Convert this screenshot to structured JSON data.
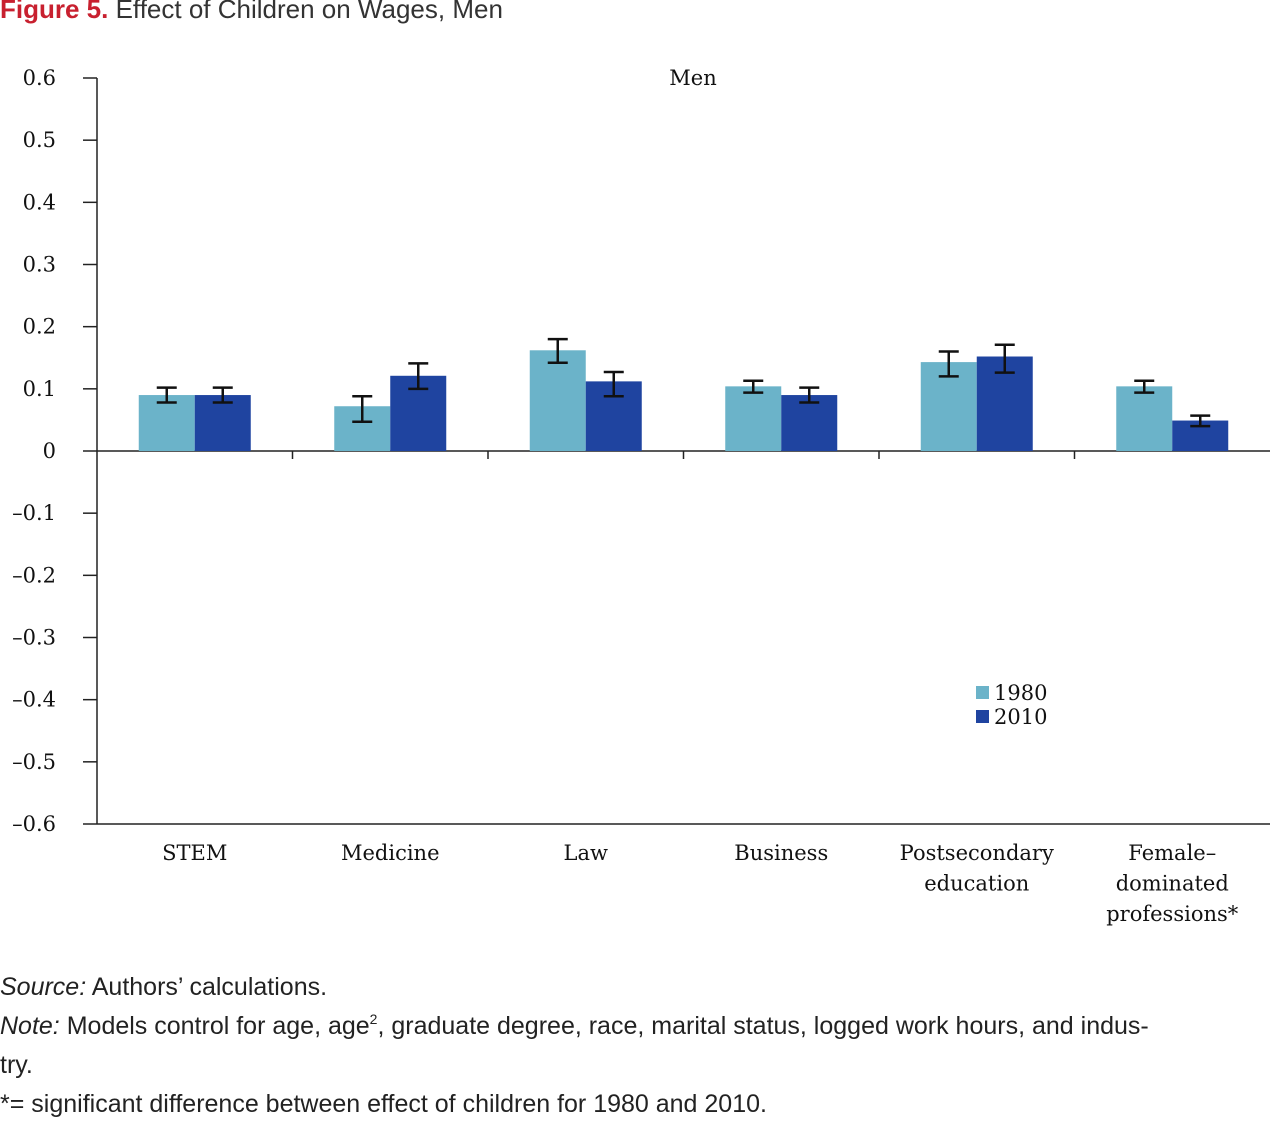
{
  "figure": {
    "label": "Figure 5.",
    "title": "Effect of Children on Wages, Men"
  },
  "chart_data": {
    "type": "bar",
    "title": "Men",
    "xlabel": "",
    "ylabel": "",
    "ylim": [
      -0.6,
      0.6
    ],
    "yticks": [
      0.6,
      0.5,
      0.4,
      0.3,
      0.2,
      0.1,
      0,
      -0.1,
      -0.2,
      -0.3,
      -0.4,
      -0.5,
      -0.6
    ],
    "ytick_labels": [
      "0.6",
      "0.5",
      "0.4",
      "0.3",
      "0.2",
      "0.1",
      "0",
      "–0.1",
      "–0.2",
      "–0.3",
      "–0.4",
      "–0.5",
      "–0.6"
    ],
    "categories": [
      [
        "STEM"
      ],
      [
        "Medicine"
      ],
      [
        "Law"
      ],
      [
        "Business"
      ],
      [
        "Postsecondary",
        "education"
      ],
      [
        "Female–",
        "dominated",
        "professions*"
      ]
    ],
    "series": [
      {
        "name": "1980",
        "color": "#6bb3c9",
        "values": [
          0.09,
          0.072,
          0.162,
          0.104,
          0.143,
          0.104
        ],
        "ci_low": [
          0.078,
          0.047,
          0.142,
          0.094,
          0.12,
          0.094
        ],
        "ci_high": [
          0.102,
          0.088,
          0.18,
          0.113,
          0.16,
          0.113
        ]
      },
      {
        "name": "2010",
        "color": "#1f44a0",
        "values": [
          0.09,
          0.121,
          0.112,
          0.09,
          0.152,
          0.049
        ],
        "ci_low": [
          0.078,
          0.1,
          0.088,
          0.078,
          0.126,
          0.04
        ],
        "ci_high": [
          0.102,
          0.141,
          0.127,
          0.102,
          0.171,
          0.057
        ]
      }
    ],
    "legend_position": "lower-right",
    "grid": false
  },
  "notes": {
    "source_lead": "Source:",
    "source_text": " Authors’ calculations.",
    "note_lead": "Note:",
    "note_text_a": " Models control for age, age",
    "note_sup": "2",
    "note_text_b": ", graduate degree, race, marital status, logged work hours, and indus-",
    "note_text_c": "try.",
    "significance": "*= significant difference between effect of children for 1980 and 2010."
  }
}
